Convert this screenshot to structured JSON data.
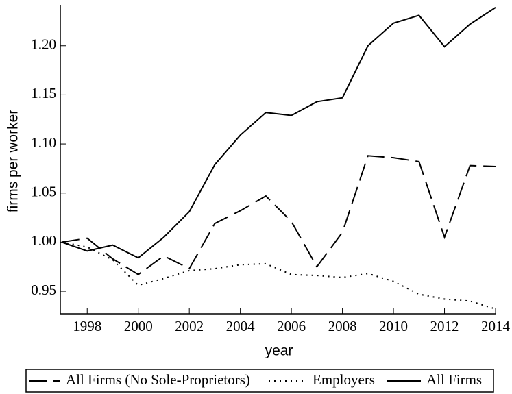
{
  "chart_data": {
    "type": "line",
    "x_label": "year",
    "y_label": "firms per worker",
    "x": [
      1997,
      1998,
      1999,
      2000,
      2001,
      2002,
      2003,
      2004,
      2005,
      2006,
      2007,
      2008,
      2009,
      2010,
      2011,
      2012,
      2013,
      2014
    ],
    "series": [
      {
        "name": "All Firms (No Sole-Proprietors)",
        "color": "#000000",
        "linestyle": "dashed",
        "values": [
          1.0,
          1.004,
          0.983,
          0.967,
          0.986,
          0.973,
          1.019,
          1.032,
          1.047,
          1.021,
          0.975,
          1.01,
          1.088,
          1.086,
          1.082,
          1.005,
          1.078,
          1.077
        ]
      },
      {
        "name": "Employers",
        "color": "#000000",
        "linestyle": "dotted",
        "values": [
          1.0,
          0.995,
          0.982,
          0.956,
          0.963,
          0.971,
          0.973,
          0.977,
          0.978,
          0.967,
          0.966,
          0.964,
          0.968,
          0.96,
          0.947,
          0.942,
          0.94,
          0.932
        ]
      },
      {
        "name": "All Firms",
        "color": "#000000",
        "linestyle": "solid",
        "values": [
          1.0,
          0.991,
          0.997,
          0.984,
          1.005,
          1.031,
          1.079,
          1.109,
          1.132,
          1.129,
          1.143,
          1.147,
          1.2,
          1.223,
          1.231,
          1.199,
          1.222,
          1.239
        ]
      }
    ],
    "xlim": [
      1997,
      2014
    ],
    "xticks": [
      1998,
      2000,
      2002,
      2004,
      2006,
      2008,
      2010,
      2012,
      2014
    ],
    "ylim": [
      0.927,
      1.241
    ],
    "yticks": [
      0.95,
      {
        "value": 1,
        "label": "1.00"
      },
      1.05,
      {
        "value": 1.1,
        "label": "1.10"
      },
      1.15,
      {
        "value": 1.2,
        "label": "1.20"
      }
    ],
    "grid": false,
    "legend": "bottom"
  }
}
